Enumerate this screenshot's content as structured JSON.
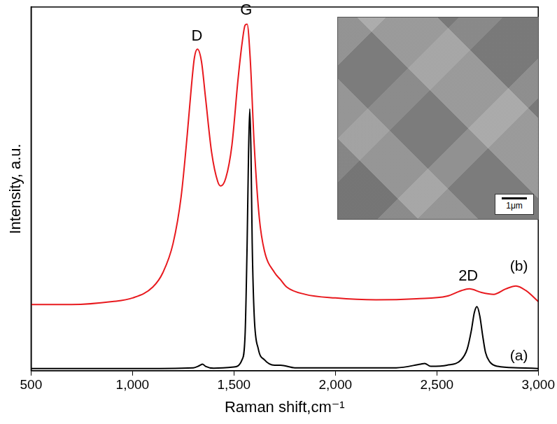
{
  "chart_data": {
    "type": "line",
    "x_label": "Raman shift,cm⁻¹",
    "y_label": "Intensity, a.u.",
    "xlim": [
      500,
      3000
    ],
    "xticks": [
      500,
      1000,
      1500,
      2000,
      2500,
      3000
    ],
    "ylim": [
      0,
      100
    ],
    "tick_labels": "x",
    "grid": false,
    "series": [
      {
        "name": "(a)",
        "color": "#000000",
        "label": {
          "x": 2905,
          "y": 4
        },
        "x": [
          500,
          1000,
          1300,
          1330,
          1345,
          1360,
          1400,
          1500,
          1540,
          1555,
          1565,
          1572,
          1578,
          1584,
          1590,
          1600,
          1620,
          1650,
          1700,
          1730,
          1800,
          2300,
          2420,
          2440,
          2470,
          2550,
          2620,
          2650,
          2670,
          2685,
          2698,
          2712,
          2725,
          2740,
          2760,
          2800,
          2900,
          3000
        ],
        "values": [
          0.6,
          0.6,
          0.8,
          1.4,
          1.8,
          1.2,
          0.7,
          1.0,
          3,
          10,
          35,
          60,
          72,
          60,
          35,
          15,
          6,
          3,
          1.5,
          1.5,
          0.8,
          0.8,
          1.8,
          2.0,
          1.2,
          1.5,
          3,
          6,
          11,
          16,
          17.6,
          15,
          10,
          5,
          2.5,
          1.2,
          0.8,
          0.6
        ]
      },
      {
        "name": "(b)",
        "color": "#e8191e",
        "label": {
          "x": 2905,
          "y": 28.5
        },
        "x": [
          500,
          700,
          900,
          1000,
          1100,
          1150,
          1200,
          1240,
          1270,
          1290,
          1305,
          1320,
          1340,
          1360,
          1390,
          1420,
          1435,
          1460,
          1490,
          1520,
          1540,
          1555,
          1565,
          1580,
          1600,
          1625,
          1650,
          1700,
          1730,
          1760,
          1850,
          2000,
          2200,
          2400,
          2550,
          2620,
          2660,
          2720,
          2780,
          2840,
          2890,
          2940,
          3000
        ],
        "values": [
          18.2,
          18.2,
          19,
          20,
          23,
          27,
          35,
          48,
          65,
          78,
          86,
          88.4,
          85,
          75,
          60,
          52,
          50.8,
          53,
          62,
          80,
          90,
          95,
          95.3,
          86,
          62,
          42,
          33,
          27,
          25,
          23,
          21,
          20,
          19.5,
          19.8,
          20.5,
          22,
          22.5,
          21.5,
          21,
          22.5,
          23.3,
          22,
          19
        ]
      }
    ],
    "annotations": [
      {
        "text": "D",
        "x": 1318,
        "y": 92
      },
      {
        "text": "G",
        "x": 1560,
        "y": 99
      },
      {
        "text": "2D",
        "x": 2655,
        "y": 26
      }
    ],
    "inset": {
      "scale_bar": "1μm"
    }
  }
}
